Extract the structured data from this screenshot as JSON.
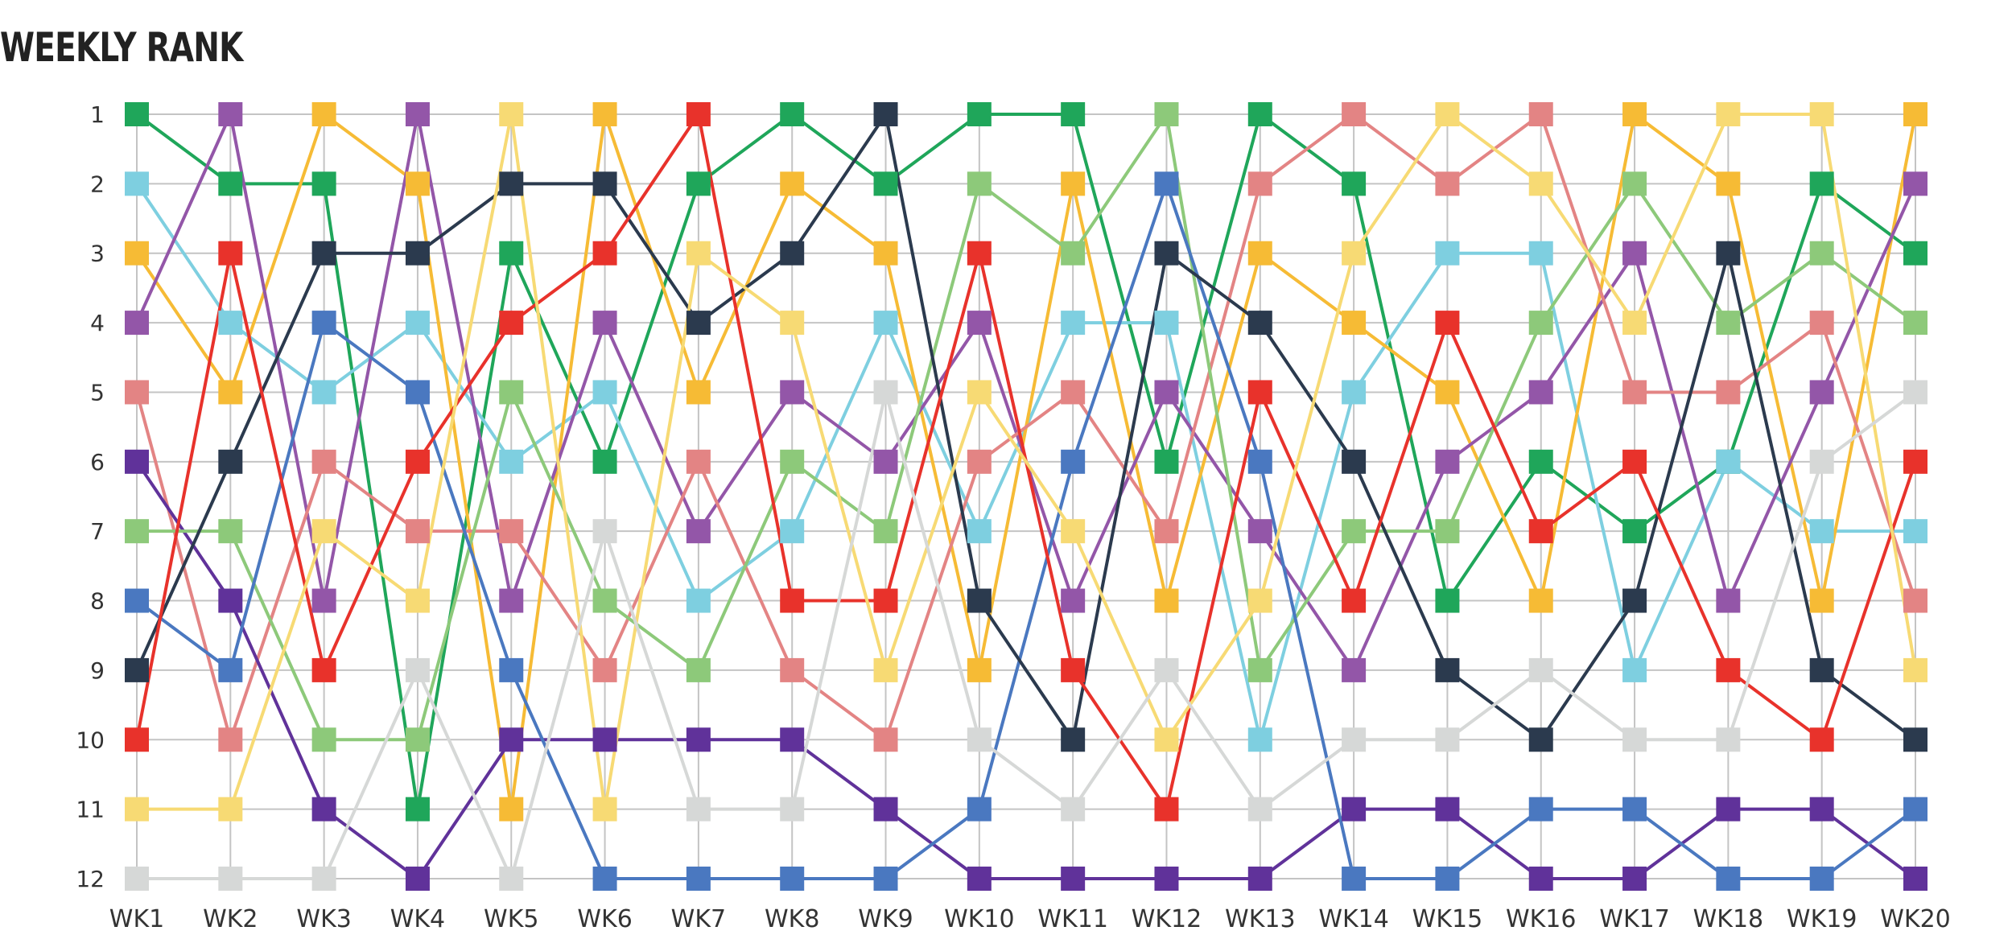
{
  "chart_data": {
    "type": "line",
    "title": "WEEKLY RANK",
    "xlabel": "",
    "ylabel": "",
    "categories": [
      "WK1",
      "WK2",
      "WK3",
      "WK4",
      "WK5",
      "WK6",
      "WK7",
      "WK8",
      "WK9",
      "WK10",
      "WK11",
      "WK12",
      "WK13",
      "WK14",
      "WK15",
      "WK16",
      "WK17",
      "WK18",
      "WK19",
      "WK20"
    ],
    "y_ticks": [
      1,
      2,
      3,
      4,
      5,
      6,
      7,
      8,
      9,
      10,
      11,
      12
    ],
    "ylim": [
      12,
      1
    ],
    "y_reversed": true,
    "grid": true,
    "legend": "none",
    "marker": "square",
    "series": [
      {
        "color": "#1fa65a",
        "values": [
          1,
          2,
          2,
          11,
          3,
          6,
          2,
          1,
          2,
          1,
          1,
          6,
          1,
          2,
          8,
          6,
          7,
          6,
          2,
          3
        ]
      },
      {
        "color": "#7ecfe0",
        "values": [
          2,
          4,
          5,
          4,
          6,
          5,
          8,
          7,
          4,
          7,
          4,
          4,
          10,
          5,
          3,
          3,
          9,
          6,
          7,
          7
        ]
      },
      {
        "color": "#f6bb35",
        "values": [
          3,
          5,
          1,
          2,
          11,
          1,
          5,
          2,
          3,
          9,
          2,
          8,
          3,
          4,
          5,
          8,
          1,
          2,
          8,
          1
        ]
      },
      {
        "color": "#9356a8",
        "values": [
          4,
          1,
          8,
          1,
          8,
          4,
          7,
          5,
          6,
          4,
          8,
          5,
          7,
          9,
          6,
          5,
          3,
          8,
          5,
          2
        ]
      },
      {
        "color": "#e38484",
        "values": [
          5,
          10,
          6,
          7,
          7,
          9,
          6,
          9,
          10,
          6,
          5,
          7,
          2,
          1,
          2,
          1,
          5,
          5,
          4,
          8
        ]
      },
      {
        "color": "#60329a",
        "values": [
          6,
          8,
          11,
          12,
          10,
          10,
          10,
          10,
          11,
          12,
          12,
          12,
          12,
          11,
          11,
          12,
          12,
          11,
          11,
          12
        ]
      },
      {
        "color": "#8dc97a",
        "values": [
          7,
          7,
          10,
          10,
          5,
          8,
          9,
          6,
          7,
          2,
          3,
          1,
          9,
          7,
          7,
          4,
          2,
          4,
          3,
          4
        ]
      },
      {
        "color": "#4a78c0",
        "values": [
          8,
          9,
          4,
          5,
          9,
          12,
          12,
          12,
          12,
          11,
          6,
          2,
          6,
          12,
          12,
          11,
          11,
          12,
          12,
          11
        ]
      },
      {
        "color": "#2b3a4e",
        "values": [
          9,
          6,
          3,
          3,
          2,
          2,
          4,
          3,
          1,
          8,
          10,
          3,
          4,
          6,
          9,
          10,
          8,
          3,
          9,
          10
        ]
      },
      {
        "color": "#e8322b",
        "values": [
          10,
          3,
          9,
          6,
          4,
          3,
          1,
          8,
          8,
          3,
          9,
          11,
          5,
          8,
          4,
          7,
          6,
          9,
          10,
          6
        ]
      },
      {
        "color": "#f7da74",
        "values": [
          11,
          11,
          7,
          8,
          1,
          11,
          3,
          4,
          9,
          5,
          7,
          10,
          8,
          3,
          1,
          2,
          4,
          1,
          1,
          9
        ]
      },
      {
        "color": "#d6d8d7",
        "values": [
          12,
          12,
          12,
          9,
          12,
          7,
          11,
          11,
          5,
          10,
          11,
          9,
          11,
          10,
          10,
          9,
          10,
          10,
          6,
          5
        ]
      }
    ]
  }
}
